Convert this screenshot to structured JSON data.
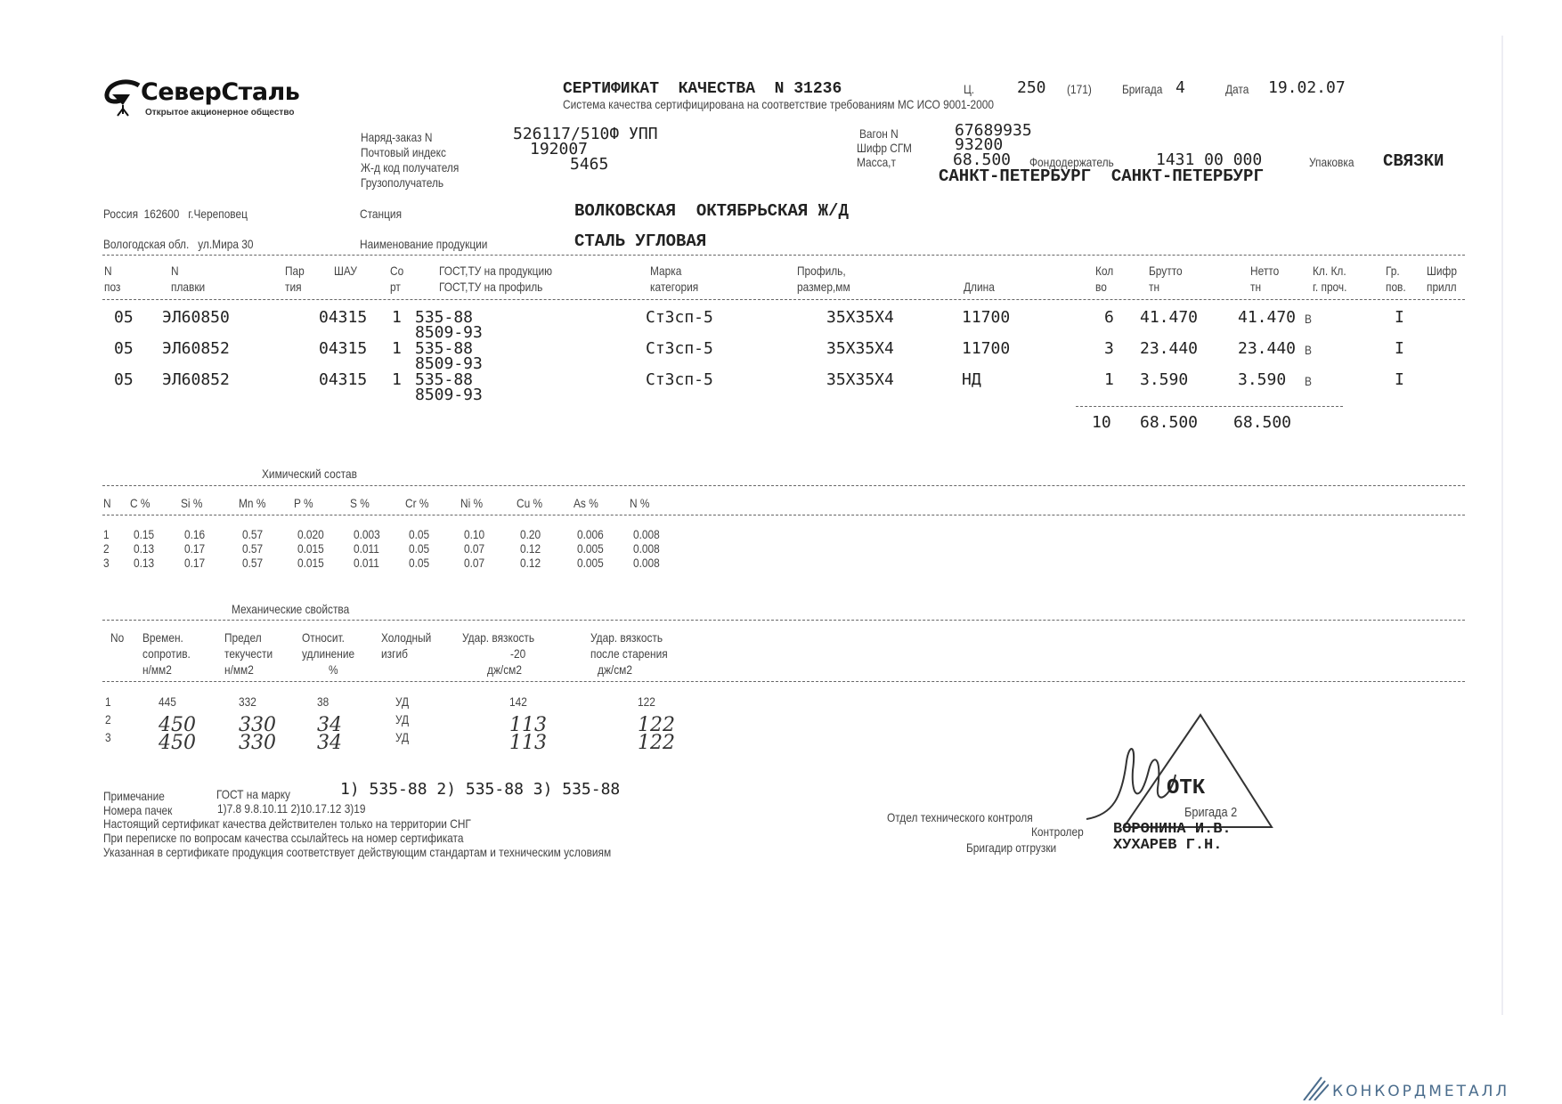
{
  "logo": {
    "name": "СеверСталь",
    "subtitle": "Открытое акционерное общество"
  },
  "header": {
    "title": "СЕРТИФИКАТ  КАЧЕСТВА  N 31236",
    "shop_label": "Ц.",
    "shop": "250",
    "shop_sub": "(171)",
    "brigade_label": "Бригада",
    "brigade": "4",
    "date_label": "Дата",
    "date": "19.02.07",
    "quality_note": "Система качества сертифицирована на соответствие требованиям МС ИСО 9001-2000"
  },
  "order": {
    "fields": [
      {
        "label": "Наряд-заказ N",
        "value": "526117/510Ф УПП"
      },
      {
        "label": "Почтовый индекс",
        "value": "192007"
      },
      {
        "label": "Ж-д код получателя",
        "value": "5465"
      },
      {
        "label": "Грузополучатель",
        "value": ""
      }
    ],
    "wagon_label": "Вагон N",
    "wagon": "67689935",
    "sgm_label": "Шифр СГМ",
    "sgm": "93200",
    "mass_label": "Масса,т",
    "mass": "68.500",
    "fund_label": "Фондодержатель",
    "fund": "1431 00 000",
    "pack_label": "Упаковка",
    "pack": "СВЯЗКИ",
    "consignee": "САНКТ-ПЕТЕРБУРГ  САНКТ-ПЕТЕРБУРГ"
  },
  "address": {
    "line1": "Россия  162600   г.Череповец",
    "line2": "Вологодская обл.   ул.Мира 30",
    "station_label": "Станция",
    "station": "ВОЛКОВСКАЯ  ОКТЯБРЬСКАЯ Ж/Д",
    "product_label": "Наименование продукции",
    "product": "СТАЛЬ УГЛОВАЯ"
  },
  "items": {
    "headers": [
      [
        "N",
        "поз"
      ],
      [
        "N",
        "плавки"
      ],
      [
        "Пар",
        "тия"
      ],
      [
        "ШАУ",
        ""
      ],
      [
        "Со",
        "рт"
      ],
      [
        "ГОСТ,ТУ на продукцию",
        "ГОСТ,ТУ на профиль"
      ],
      [
        "Марка",
        "категория"
      ],
      [
        "Профиль,",
        "размер,мм"
      ],
      [
        "",
        "Длина"
      ],
      [
        "Кол",
        "во"
      ],
      [
        "Брутто",
        "тн"
      ],
      [
        "Нетто",
        "тн"
      ],
      [
        "Кл. Кл.",
        "г. проч."
      ],
      [
        "Гр.",
        "пов."
      ],
      [
        "Шифр",
        "прилл"
      ]
    ],
    "rows": [
      {
        "pos": "05",
        "heat": "ЭЛ60850",
        "shau": "04315",
        "sort": "1",
        "gost": "535-88",
        "gost2": "8509-93",
        "grade": "Ст3сп-5",
        "profile": "35Х35Х4",
        "length": "11700",
        "qty": "6",
        "gross": "41.470",
        "net": "41.470",
        "cls": "В",
        "grp": "I"
      },
      {
        "pos": "05",
        "heat": "ЭЛ60852",
        "shau": "04315",
        "sort": "1",
        "gost": "535-88",
        "gost2": "8509-93",
        "grade": "Ст3сп-5",
        "profile": "35Х35Х4",
        "length": "11700",
        "qty": "3",
        "gross": "23.440",
        "net": "23.440",
        "cls": "В",
        "grp": "I"
      },
      {
        "pos": "05",
        "heat": "ЭЛ60852",
        "shau": "04315",
        "sort": "1",
        "gost": "535-88",
        "gost2": "8509-93",
        "grade": "Ст3сп-5",
        "profile": "35Х35Х4",
        "length": "НД",
        "qty": "1",
        "gross": "3.590",
        "net": "3.590",
        "cls": "В",
        "grp": "I"
      }
    ],
    "totals": {
      "qty": "10",
      "gross": "68.500",
      "net": "68.500"
    }
  },
  "chemistry": {
    "title": "Химический состав",
    "headers": [
      "N",
      "C %",
      "Si %",
      "Mn %",
      "P %",
      "S %",
      "Cr %",
      "Ni %",
      "Cu %",
      "As %",
      "N %"
    ],
    "rows": [
      [
        "1",
        "0.15",
        "0.16",
        "0.57",
        "0.020",
        "0.003",
        "0.05",
        "0.10",
        "0.20",
        "0.006",
        "0.008"
      ],
      [
        "2",
        "0.13",
        "0.17",
        "0.57",
        "0.015",
        "0.011",
        "0.05",
        "0.07",
        "0.12",
        "0.005",
        "0.008"
      ],
      [
        "3",
        "0.13",
        "0.17",
        "0.57",
        "0.015",
        "0.011",
        "0.05",
        "0.07",
        "0.12",
        "0.005",
        "0.008"
      ]
    ]
  },
  "mechanical": {
    "title": "Механические свойства",
    "headers": [
      [
        "No",
        "",
        ""
      ],
      [
        "Времен.",
        "сопротив.",
        "н/мм2"
      ],
      [
        "Предел",
        "текучести",
        "н/мм2"
      ],
      [
        "Относит.",
        "удлинение",
        "%"
      ],
      [
        "Холодный",
        "изгиб",
        ""
      ],
      [
        "Удар. вязкость",
        "-20",
        "дж/см2"
      ],
      [
        "Удар. вязкость",
        "после старения",
        "дж/см2"
      ]
    ],
    "rows": [
      [
        "1",
        "445",
        "332",
        "38",
        "УД",
        "142",
        "122"
      ],
      [
        "2",
        "450",
        "330",
        "34",
        "УД",
        "113",
        "122"
      ],
      [
        "3",
        "450",
        "330",
        "34",
        "УД",
        "113",
        "122"
      ]
    ]
  },
  "notes": {
    "note_label": "Примечание",
    "gost_label": "ГОСТ на марку",
    "gost_value": "1) 535-88 2) 535-88 3) 535-88",
    "bundles_label": "Номера пачек",
    "bundles_value": "1)7.8 9.8.10.11 2)10.17.12 3)19",
    "line1": "Настоящий сертификат качества действителен только на территории СНГ",
    "line2": "При переписке по вопросам качества ссылайтесь на номер сертификата",
    "line3": "Указанная в сертификате продукция соответствует действующим стандартам и техническим условиям"
  },
  "signatures": {
    "dept": "Отдел технического контроля",
    "controller_label": "Контролер",
    "controller": "ВОРОНИНА И.В.",
    "foreman_label": "Бригадир отгрузки",
    "foreman": "ХУХАРЕВ Г.Н.",
    "stamp_text": "ОТК",
    "stamp_sub": "Бригада 2"
  },
  "watermark": "КОНКОРДМЕТАЛЛ"
}
